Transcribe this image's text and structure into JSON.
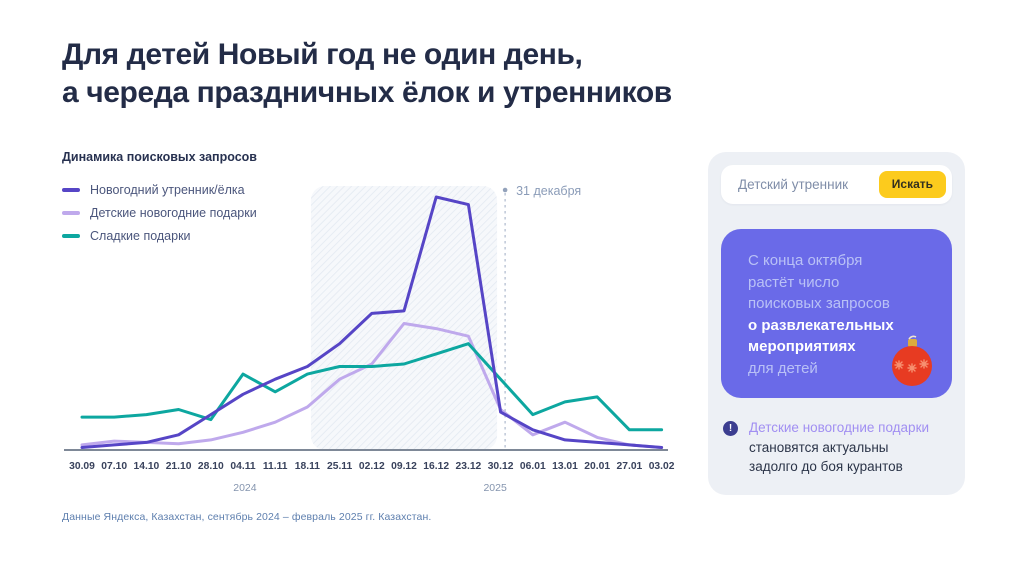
{
  "page": {
    "title_line1": "Для детей Новый год не один день,",
    "title_line2": "а череда праздничных ёлок и утренников",
    "footer": "Данные Яндекса, Казахстан, сентябрь 2024 – февраль 2025 гг. Казахстан."
  },
  "chart_data": {
    "type": "line",
    "title": "Динамика поисковых запросов",
    "categories": [
      "30.09",
      "07.10",
      "14.10",
      "21.10",
      "28.10",
      "04.11",
      "11.11",
      "18.11",
      "25.11",
      "02.12",
      "09.12",
      "16.12",
      "23.12",
      "30.12",
      "06.01",
      "13.01",
      "20.01",
      "27.01",
      "03.02"
    ],
    "series": [
      {
        "name": "Новогодний утренник/ёлка",
        "color": "#5645c6",
        "values": [
          1,
          2,
          3,
          6,
          14,
          22,
          28,
          33,
          42,
          54,
          55,
          100,
          97,
          15,
          8,
          4,
          3,
          2,
          1
        ]
      },
      {
        "name": "Детские новогодние подарки",
        "color": "#bfa9ec",
        "values": [
          2,
          3.5,
          3,
          2.5,
          4,
          7,
          11,
          17,
          28,
          34,
          50,
          48,
          45,
          16,
          6,
          11,
          5,
          2,
          1
        ]
      },
      {
        "name": "Сладкие подарки",
        "color": "#0da7a0",
        "values": [
          13,
          13,
          14,
          16,
          12,
          30,
          23,
          30,
          33,
          33,
          34,
          38,
          42,
          28,
          14,
          19,
          21,
          8,
          8
        ]
      }
    ],
    "ylim": [
      0,
      105
    ],
    "grid": false,
    "legend_position": "top-left",
    "xlabel": "",
    "ylabel": "",
    "annotation": {
      "text": "31 декабря",
      "x_index": 13.14
    },
    "highlight_region": {
      "from_index": 7.11,
      "to_index": 12.89
    },
    "year_labels": [
      {
        "text": "2024",
        "x_index": 5.06
      },
      {
        "text": "2025",
        "x_index": 12.83
      }
    ]
  },
  "search_card": {
    "query": "Детский утренник",
    "button_label": "Искать",
    "callout": {
      "l1": "С конца октября",
      "l2": "растёт число",
      "l3": "поисковых запросов",
      "b1": "о развлекательных",
      "b2": "мероприятиях",
      "l4": "для детей"
    },
    "note": {
      "icon_glyph": "!",
      "highlight": "Детские новогодние подарки",
      "line2": "становятся актуальны",
      "line3": "задолго до боя курантов"
    }
  },
  "colors": {
    "title": "#232c47",
    "accent_purple": "#6a6ae8",
    "yandex_yellow": "#fccb1d",
    "axis": "#7e8897",
    "annotation_text": "#8b9cb8",
    "hatch_line": "#e3e9f1"
  }
}
